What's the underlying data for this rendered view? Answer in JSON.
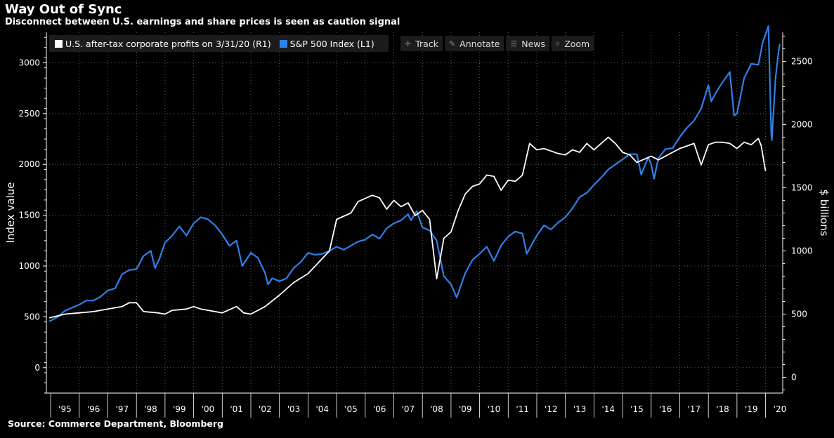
{
  "header": {
    "title": "Way Out of Sync",
    "subtitle": "Disconnect between U.S. earnings and share prices is seen as caution signal"
  },
  "footer": {
    "source": "Source: Commerce Department, Bloomberg"
  },
  "legend": [
    {
      "label": "U.S. after-tax corporate profits on 3/31/20 (R1)",
      "color": "#ffffff"
    },
    {
      "label": "S&P 500 Index  (L1)",
      "color": "#2f80e8"
    }
  ],
  "toolbar": [
    {
      "label": "Track",
      "icon": "crosshair-icon"
    },
    {
      "label": "Annotate",
      "icon": "pencil-icon"
    },
    {
      "label": "News",
      "icon": "news-icon"
    },
    {
      "label": "Zoom",
      "icon": "magnifier-icon"
    }
  ],
  "chart_data": {
    "type": "line",
    "grid": true,
    "legend_position": "top-left",
    "ylabel_left": "Index value",
    "ylabel_right": "$ billions",
    "y_left_lim": [
      -250,
      3300
    ],
    "y_left_ticks": [
      0,
      500,
      1000,
      1500,
      2000,
      2500,
      3000
    ],
    "y_right_lim": [
      -125,
      2730
    ],
    "y_right_ticks": [
      0,
      500,
      1000,
      1500,
      2000,
      2500
    ],
    "x_lim": [
      1994.85,
      2020.6
    ],
    "x_ticks": [
      {
        "label": "'95",
        "x": 1995.5
      },
      {
        "label": "'96",
        "x": 1996.5
      },
      {
        "label": "'97",
        "x": 1997.5
      },
      {
        "label": "'98",
        "x": 1998.5
      },
      {
        "label": "'99",
        "x": 1999.5
      },
      {
        "label": "'00",
        "x": 2000.5
      },
      {
        "label": "'01",
        "x": 2001.5
      },
      {
        "label": "'02",
        "x": 2002.5
      },
      {
        "label": "'03",
        "x": 2003.5
      },
      {
        "label": "'04",
        "x": 2004.5
      },
      {
        "label": "'05",
        "x": 2005.5
      },
      {
        "label": "'06",
        "x": 2006.5
      },
      {
        "label": "'07",
        "x": 2007.5
      },
      {
        "label": "'08",
        "x": 2008.5
      },
      {
        "label": "'09",
        "x": 2009.5
      },
      {
        "label": "'10",
        "x": 2010.5
      },
      {
        "label": "'11",
        "x": 2011.5
      },
      {
        "label": "'12",
        "x": 2012.5
      },
      {
        "label": "'13",
        "x": 2013.5
      },
      {
        "label": "'14",
        "x": 2014.5
      },
      {
        "label": "'15",
        "x": 2015.5
      },
      {
        "label": "'16",
        "x": 2016.5
      },
      {
        "label": "'17",
        "x": 2017.5
      },
      {
        "label": "'18",
        "x": 2018.5
      },
      {
        "label": "'19",
        "x": 2019.5
      },
      {
        "label": "'20",
        "x": 2020.5
      }
    ],
    "series": [
      {
        "name": "U.S. after-tax corporate profits on 3/31/20",
        "axis": "right",
        "color": "#ffffff",
        "points": [
          [
            1994.95,
            470
          ],
          [
            1995.5,
            500
          ],
          [
            1996.0,
            510
          ],
          [
            1996.5,
            520
          ],
          [
            1997.0,
            540
          ],
          [
            1997.5,
            560
          ],
          [
            1997.75,
            590
          ],
          [
            1998.0,
            590
          ],
          [
            1998.25,
            520
          ],
          [
            1998.75,
            510
          ],
          [
            1999.0,
            500
          ],
          [
            1999.25,
            530
          ],
          [
            1999.75,
            540
          ],
          [
            2000.0,
            560
          ],
          [
            2000.25,
            540
          ],
          [
            2000.75,
            520
          ],
          [
            2001.0,
            510
          ],
          [
            2001.5,
            560
          ],
          [
            2001.75,
            510
          ],
          [
            2002.0,
            500
          ],
          [
            2002.5,
            560
          ],
          [
            2003.0,
            650
          ],
          [
            2003.5,
            750
          ],
          [
            2004.0,
            820
          ],
          [
            2004.5,
            940
          ],
          [
            2004.75,
            1000
          ],
          [
            2005.0,
            1250
          ],
          [
            2005.5,
            1300
          ],
          [
            2005.75,
            1390
          ],
          [
            2006.25,
            1440
          ],
          [
            2006.5,
            1420
          ],
          [
            2006.75,
            1330
          ],
          [
            2007.0,
            1400
          ],
          [
            2007.25,
            1350
          ],
          [
            2007.5,
            1380
          ],
          [
            2007.75,
            1280
          ],
          [
            2008.0,
            1320
          ],
          [
            2008.25,
            1250
          ],
          [
            2008.5,
            780
          ],
          [
            2008.75,
            1100
          ],
          [
            2009.0,
            1150
          ],
          [
            2009.25,
            1320
          ],
          [
            2009.5,
            1450
          ],
          [
            2009.75,
            1510
          ],
          [
            2010.0,
            1530
          ],
          [
            2010.25,
            1600
          ],
          [
            2010.5,
            1590
          ],
          [
            2010.75,
            1480
          ],
          [
            2011.0,
            1560
          ],
          [
            2011.25,
            1550
          ],
          [
            2011.5,
            1600
          ],
          [
            2011.75,
            1850
          ],
          [
            2012.0,
            1800
          ],
          [
            2012.25,
            1810
          ],
          [
            2012.5,
            1790
          ],
          [
            2012.75,
            1770
          ],
          [
            2013.0,
            1760
          ],
          [
            2013.25,
            1800
          ],
          [
            2013.5,
            1780
          ],
          [
            2013.75,
            1850
          ],
          [
            2014.0,
            1800
          ],
          [
            2014.5,
            1900
          ],
          [
            2014.75,
            1850
          ],
          [
            2015.0,
            1780
          ],
          [
            2015.25,
            1760
          ],
          [
            2015.5,
            1700
          ],
          [
            2016.0,
            1750
          ],
          [
            2016.25,
            1720
          ],
          [
            2016.75,
            1780
          ],
          [
            2017.0,
            1810
          ],
          [
            2017.25,
            1830
          ],
          [
            2017.5,
            1850
          ],
          [
            2017.75,
            1680
          ],
          [
            2018.0,
            1840
          ],
          [
            2018.25,
            1860
          ],
          [
            2018.5,
            1860
          ],
          [
            2018.75,
            1850
          ],
          [
            2019.0,
            1810
          ],
          [
            2019.25,
            1860
          ],
          [
            2019.5,
            1840
          ],
          [
            2019.75,
            1890
          ],
          [
            2019.85,
            1830
          ],
          [
            2020.0,
            1630
          ]
        ]
      },
      {
        "name": "S&P 500 Index",
        "axis": "left",
        "color": "#2f80e8",
        "points": [
          [
            1994.95,
            455
          ],
          [
            1995.25,
            500
          ],
          [
            1995.5,
            560
          ],
          [
            1995.75,
            590
          ],
          [
            1996.0,
            620
          ],
          [
            1996.25,
            660
          ],
          [
            1996.5,
            660
          ],
          [
            1996.75,
            700
          ],
          [
            1997.0,
            760
          ],
          [
            1997.25,
            780
          ],
          [
            1997.5,
            920
          ],
          [
            1997.75,
            960
          ],
          [
            1998.0,
            970
          ],
          [
            1998.25,
            1100
          ],
          [
            1998.5,
            1150
          ],
          [
            1998.65,
            980
          ],
          [
            1998.8,
            1070
          ],
          [
            1999.0,
            1230
          ],
          [
            1999.25,
            1300
          ],
          [
            1999.5,
            1390
          ],
          [
            1999.75,
            1300
          ],
          [
            2000.0,
            1420
          ],
          [
            2000.25,
            1480
          ],
          [
            2000.5,
            1460
          ],
          [
            2000.75,
            1400
          ],
          [
            2001.0,
            1310
          ],
          [
            2001.25,
            1200
          ],
          [
            2001.5,
            1250
          ],
          [
            2001.7,
            1000
          ],
          [
            2002.0,
            1130
          ],
          [
            2002.25,
            1080
          ],
          [
            2002.5,
            930
          ],
          [
            2002.6,
            820
          ],
          [
            2002.75,
            880
          ],
          [
            2003.0,
            850
          ],
          [
            2003.25,
            880
          ],
          [
            2003.5,
            980
          ],
          [
            2003.75,
            1040
          ],
          [
            2004.0,
            1130
          ],
          [
            2004.25,
            1110
          ],
          [
            2004.5,
            1120
          ],
          [
            2004.75,
            1150
          ],
          [
            2005.0,
            1190
          ],
          [
            2005.25,
            1160
          ],
          [
            2005.5,
            1200
          ],
          [
            2005.75,
            1240
          ],
          [
            2006.0,
            1260
          ],
          [
            2006.25,
            1310
          ],
          [
            2006.5,
            1270
          ],
          [
            2006.75,
            1370
          ],
          [
            2007.0,
            1420
          ],
          [
            2007.25,
            1450
          ],
          [
            2007.5,
            1510
          ],
          [
            2007.6,
            1450
          ],
          [
            2007.8,
            1540
          ],
          [
            2008.0,
            1380
          ],
          [
            2008.25,
            1350
          ],
          [
            2008.5,
            1250
          ],
          [
            2008.75,
            900
          ],
          [
            2009.0,
            820
          ],
          [
            2009.2,
            690
          ],
          [
            2009.5,
            930
          ],
          [
            2009.75,
            1060
          ],
          [
            2010.0,
            1120
          ],
          [
            2010.25,
            1190
          ],
          [
            2010.5,
            1050
          ],
          [
            2010.75,
            1200
          ],
          [
            2011.0,
            1290
          ],
          [
            2011.25,
            1340
          ],
          [
            2011.5,
            1320
          ],
          [
            2011.65,
            1120
          ],
          [
            2011.9,
            1250
          ],
          [
            2012.0,
            1300
          ],
          [
            2012.25,
            1400
          ],
          [
            2012.5,
            1360
          ],
          [
            2012.75,
            1430
          ],
          [
            2013.0,
            1480
          ],
          [
            2013.25,
            1570
          ],
          [
            2013.5,
            1680
          ],
          [
            2013.75,
            1720
          ],
          [
            2014.0,
            1800
          ],
          [
            2014.25,
            1870
          ],
          [
            2014.5,
            1950
          ],
          [
            2014.75,
            2000
          ],
          [
            2015.0,
            2050
          ],
          [
            2015.25,
            2100
          ],
          [
            2015.5,
            2100
          ],
          [
            2015.65,
            1900
          ],
          [
            2015.9,
            2070
          ],
          [
            2016.0,
            2000
          ],
          [
            2016.1,
            1860
          ],
          [
            2016.25,
            2060
          ],
          [
            2016.5,
            2150
          ],
          [
            2016.75,
            2160
          ],
          [
            2017.0,
            2270
          ],
          [
            2017.25,
            2360
          ],
          [
            2017.5,
            2430
          ],
          [
            2017.75,
            2550
          ],
          [
            2018.0,
            2780
          ],
          [
            2018.1,
            2620
          ],
          [
            2018.25,
            2700
          ],
          [
            2018.5,
            2810
          ],
          [
            2018.75,
            2910
          ],
          [
            2018.9,
            2480
          ],
          [
            2019.0,
            2500
          ],
          [
            2019.25,
            2850
          ],
          [
            2019.5,
            2990
          ],
          [
            2019.75,
            2980
          ],
          [
            2019.9,
            3200
          ],
          [
            2020.1,
            3360
          ],
          [
            2020.2,
            2300
          ],
          [
            2020.22,
            2240
          ],
          [
            2020.35,
            2850
          ],
          [
            2020.45,
            3100
          ],
          [
            2020.5,
            3185
          ]
        ]
      }
    ]
  }
}
